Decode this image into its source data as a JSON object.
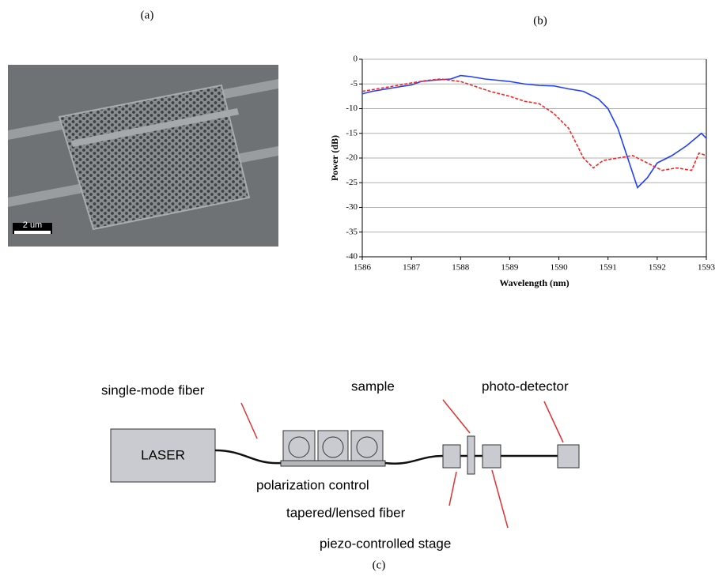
{
  "panel_labels": [
    "(a)",
    "(b)",
    "(c)"
  ],
  "image": {
    "scale_bar_label": "2 um"
  },
  "chart_data": {
    "type": "line",
    "x_label": "Wavelength (nm)",
    "y_label": "Power (dB)",
    "xlim": [
      1586,
      1593
    ],
    "xticks": [
      1586,
      1587,
      1588,
      1589,
      1590,
      1591,
      1592,
      1593
    ],
    "ylim": [
      -40,
      0
    ],
    "yticks": [
      0,
      -5,
      -10,
      -15,
      -20,
      -25,
      -30,
      -35,
      -40
    ],
    "grid": true,
    "series": [
      {
        "color": "#1f3fff",
        "dash": false,
        "x": [
          1586,
          1586.2,
          1586.5,
          1586.8,
          1587,
          1587.2,
          1587.5,
          1587.8,
          1588,
          1588.2,
          1588.5,
          1588.8,
          1589,
          1589.3,
          1589.6,
          1589.9,
          1590.2,
          1590.5,
          1590.8,
          1591,
          1591.2,
          1591.4,
          1591.6,
          1591.8,
          1592,
          1592.3,
          1592.6,
          1592.9,
          1593
        ],
        "values": [
          -7,
          -6.5,
          -6,
          -5.5,
          -5.2,
          -4.5,
          -4.2,
          -4,
          -3.3,
          -3.5,
          -4,
          -4.3,
          -4.5,
          -5,
          -5.3,
          -5.4,
          -6,
          -6.5,
          -8,
          -10,
          -14,
          -20,
          -26,
          -24,
          -21,
          -19.5,
          -17.5,
          -15,
          -16
        ]
      },
      {
        "color": "#ff2020",
        "dash": true,
        "x": [
          1586,
          1586.3,
          1586.6,
          1587,
          1587.3,
          1587.6,
          1588,
          1588.3,
          1588.6,
          1589,
          1589.3,
          1589.6,
          1589.9,
          1590.2,
          1590.4,
          1590.5,
          1590.7,
          1590.9,
          1591.2,
          1591.5,
          1591.8,
          1592.1,
          1592.4,
          1592.7,
          1592.85,
          1593
        ],
        "values": [
          -6.5,
          -6,
          -5.5,
          -4.8,
          -4.3,
          -4,
          -4.5,
          -5.5,
          -6.5,
          -7.5,
          -8.5,
          -9,
          -11,
          -14,
          -18,
          -20,
          -22,
          -20.5,
          -20,
          -19.5,
          -21,
          -22.5,
          -22,
          -22.5,
          -19,
          -19.5
        ]
      }
    ]
  },
  "diagram": {
    "laser": "LASER",
    "fiber_label": "single-mode fiber",
    "polarization_label": "polarization control",
    "sample_label": "sample",
    "detector_label": "photo-detector",
    "tapered_label": "tapered/lensed fiber",
    "stage_label": "piezo-controlled stage"
  }
}
